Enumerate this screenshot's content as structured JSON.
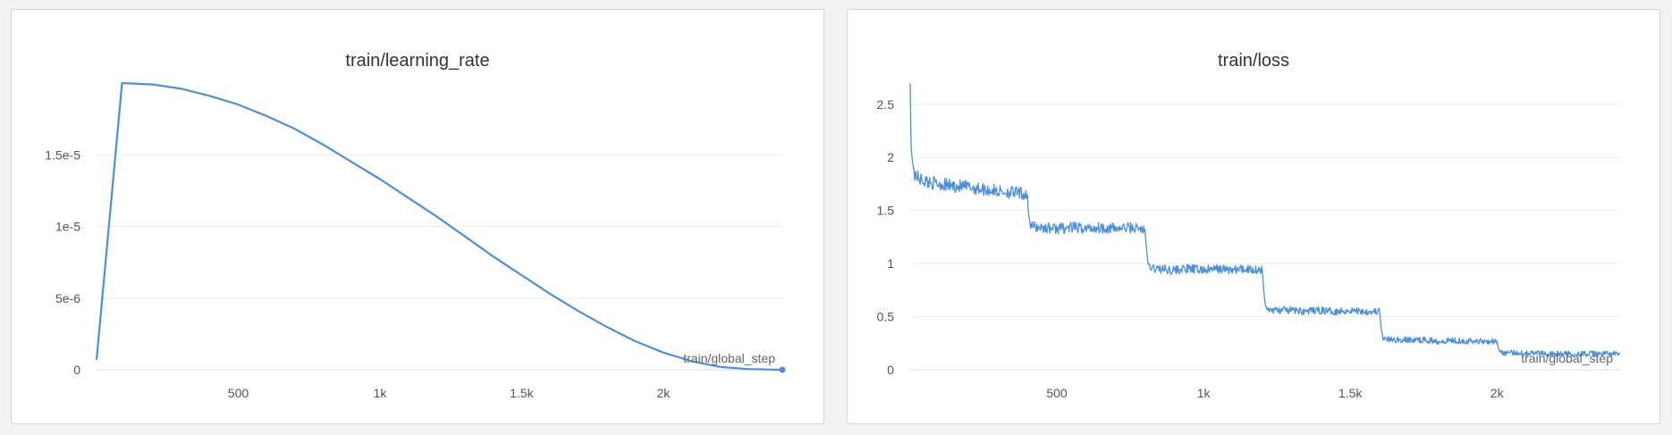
{
  "accent": "#4a90e2",
  "chart_data": [
    {
      "type": "line",
      "title": "train/learning_rate",
      "xlabel": "train/global_step",
      "ylabel": "",
      "xlim": [
        0,
        2420
      ],
      "ylim": [
        0,
        2e-05
      ],
      "xticks": [
        500,
        1000,
        1500,
        2000
      ],
      "xtick_labels": [
        "500",
        "1k",
        "1.5k",
        "2k"
      ],
      "yticks": [
        0,
        5e-06,
        1e-05,
        1.5e-05
      ],
      "ytick_labels": [
        "0",
        "5e-6",
        "1e-5",
        "1.5e-5"
      ],
      "grid": true,
      "series": [
        {
          "color": "#4a90e2",
          "x": [
            0,
            90,
            200,
            300,
            400,
            500,
            600,
            700,
            800,
            900,
            1000,
            1100,
            1200,
            1300,
            1400,
            1500,
            1600,
            1700,
            1800,
            1900,
            2000,
            2100,
            2200,
            2300,
            2420
          ],
          "y": [
            7e-07,
            2e-05,
            1.99e-05,
            1.96e-05,
            1.91e-05,
            1.85e-05,
            1.77e-05,
            1.68e-05,
            1.57e-05,
            1.45e-05,
            1.33e-05,
            1.2e-05,
            1.07e-05,
            9.3e-06,
            7.9e-06,
            6.6e-06,
            5.3e-06,
            4.1e-06,
            3e-06,
            2e-06,
            1.2e-06,
            6e-07,
            2e-07,
            5e-08,
            0.0
          ]
        }
      ]
    },
    {
      "type": "line",
      "title": "train/loss",
      "xlabel": "train/global_step",
      "ylabel": "",
      "xlim": [
        0,
        2420
      ],
      "ylim": [
        0,
        2.7
      ],
      "xticks": [
        500,
        1000,
        1500,
        2000
      ],
      "xtick_labels": [
        "500",
        "1k",
        "1.5k",
        "2k"
      ],
      "yticks": [
        0,
        0.5,
        1,
        1.5,
        2,
        2.5
      ],
      "ytick_labels": [
        "0",
        "0.5",
        "1",
        "1.5",
        "2",
        "2.5"
      ],
      "grid": true,
      "series": [
        {
          "color": "#4a90e2",
          "x": [
            0,
            3,
            8,
            15,
            30,
            60,
            100,
            150,
            200,
            250,
            300,
            350,
            400,
            402,
            410,
            450,
            500,
            550,
            600,
            650,
            700,
            750,
            800,
            805,
            812,
            850,
            900,
            950,
            1000,
            1050,
            1100,
            1150,
            1200,
            1205,
            1212,
            1250,
            1300,
            1350,
            1400,
            1450,
            1500,
            1550,
            1600,
            1605,
            1612,
            1650,
            1700,
            1750,
            1800,
            1850,
            1900,
            1950,
            2000,
            2005,
            2012,
            2100,
            2200,
            2300,
            2420
          ],
          "y": [
            2.7,
            2.1,
            1.95,
            1.85,
            1.8,
            1.77,
            1.75,
            1.73,
            1.72,
            1.7,
            1.68,
            1.67,
            1.65,
            1.5,
            1.35,
            1.34,
            1.33,
            1.34,
            1.33,
            1.34,
            1.33,
            1.34,
            1.32,
            1.15,
            0.96,
            0.95,
            0.94,
            0.95,
            0.94,
            0.95,
            0.94,
            0.95,
            0.94,
            0.75,
            0.57,
            0.56,
            0.56,
            0.55,
            0.56,
            0.55,
            0.56,
            0.55,
            0.55,
            0.4,
            0.29,
            0.28,
            0.28,
            0.28,
            0.27,
            0.28,
            0.27,
            0.27,
            0.27,
            0.2,
            0.16,
            0.16,
            0.15,
            0.15,
            0.15
          ]
        }
      ]
    }
  ]
}
